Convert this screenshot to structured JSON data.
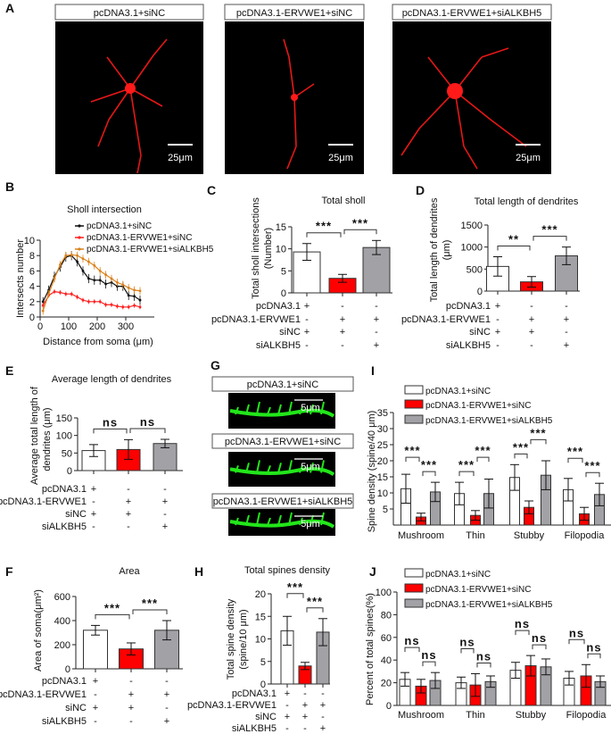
{
  "panel_A": {
    "letter": "A",
    "labels": [
      "pcDNA3.1+siNC",
      "pcDNA3.1-ERVWE1+siNC",
      "pcDNA3.1-ERVWE1+siALKBH5"
    ],
    "scale_bar": "25μm",
    "stain_color": "#ff1a1a"
  },
  "panel_G": {
    "letter": "G",
    "labels": [
      "pcDNA3.1+siNC",
      "pcDNA3.1-ERVWE1+siNC",
      "pcDNA3.1-ERVWE1+siALKBH5"
    ],
    "scale_bar": "5μm",
    "stain_color": "#22e61a"
  },
  "colors": {
    "control": "#ffffff",
    "ervwe1": "#ff0000",
    "sialkbh5": "#a2a2a6",
    "line_control": "#111111",
    "line_ervwe1": "#ff2020",
    "line_sialkbh5": "#d9821e"
  },
  "chart_data": [
    {
      "panel": "B",
      "type": "line",
      "title": "Sholl intersection",
      "xlabel": "Distance from soma (μm)",
      "ylabel": "Intersects number",
      "xlim": [
        0,
        400
      ],
      "ylim": [
        0,
        10
      ],
      "xticks": [
        "0",
        "100",
        "200",
        "300"
      ],
      "yticks": [
        "0",
        "2",
        "4",
        "6",
        "8",
        "10"
      ],
      "legend_placement": "top",
      "x": [
        10,
        30,
        50,
        70,
        90,
        110,
        130,
        150,
        170,
        190,
        210,
        230,
        250,
        270,
        290,
        310,
        330,
        350
      ],
      "series": [
        {
          "name": "pcDNA3.1+siNC",
          "values": [
            2,
            3.5,
            5.3,
            6.5,
            7.8,
            8,
            7.2,
            6,
            5,
            4.8,
            4.8,
            4.3,
            4.5,
            4,
            4,
            2.8,
            2.7,
            2.2
          ],
          "err": 0.6
        },
        {
          "name": "pcDNA3.1-ERVWE1+siNC",
          "values": [
            1.5,
            2.8,
            3.3,
            3.2,
            3,
            3,
            2.6,
            2.2,
            2,
            2,
            2,
            1.6,
            1.6,
            1.4,
            1.3,
            1.3,
            1.5,
            1.3
          ],
          "err": 0.3
        },
        {
          "name": "pcDNA3.1-ERVWE1+siALKBH5",
          "values": [
            0.8,
            3,
            5,
            6.8,
            8,
            8.1,
            8,
            7.6,
            7.2,
            6.7,
            6,
            5.5,
            5,
            4.5,
            4.2,
            3.8,
            3.5,
            3.4
          ],
          "err": 0.5
        }
      ]
    },
    {
      "panel": "C",
      "type": "bar",
      "title": "Total sholl",
      "ylabel": "Total sholl intersections",
      "ylabel2": "(Number)",
      "ylim": [
        0,
        15
      ],
      "yticks": [
        "0",
        "5",
        "10",
        "15"
      ],
      "values": [
        9.3,
        3.3,
        10.3
      ],
      "sd": [
        1.9,
        0.9,
        1.6
      ],
      "significance": [
        {
          "pair": [
            0,
            1
          ],
          "label": "***"
        },
        {
          "pair": [
            1,
            2
          ],
          "label": "***"
        }
      ],
      "conditions": [
        {
          "label": "pcDNA3.1",
          "values": [
            "+",
            "-",
            "-"
          ]
        },
        {
          "label": "pcDNA3.1-ERVWE1",
          "values": [
            "-",
            "+",
            "+"
          ]
        },
        {
          "label": "siNC",
          "values": [
            "+",
            "+",
            "-"
          ]
        },
        {
          "label": "siALKBH5",
          "values": [
            "-",
            "-",
            "+"
          ]
        }
      ]
    },
    {
      "panel": "D",
      "type": "bar",
      "title": "Total length of dendrites",
      "ylabel": "Total length of dendrites",
      "ylabel2": "(μm)",
      "ylim": [
        0,
        1500
      ],
      "yticks": [
        "0",
        "500",
        "1000",
        "1500"
      ],
      "values": [
        560,
        210,
        800
      ],
      "sd": [
        220,
        120,
        200
      ],
      "significance": [
        {
          "pair": [
            0,
            1
          ],
          "label": "**"
        },
        {
          "pair": [
            1,
            2
          ],
          "label": "***"
        }
      ],
      "conditions": [
        {
          "label": "pcDNA3.1",
          "values": [
            "+",
            "-",
            "-"
          ]
        },
        {
          "label": "pcDNA3.1-ERVWE1",
          "values": [
            "-",
            "+",
            "+"
          ]
        },
        {
          "label": "siNC",
          "values": [
            "+",
            "+",
            "-"
          ]
        },
        {
          "label": "siALKBH5",
          "values": [
            "-",
            "-",
            "+"
          ]
        }
      ]
    },
    {
      "panel": "E",
      "type": "bar",
      "title": "Average length of dendrites",
      "ylabel": "Average total length of",
      "ylabel2": "dendrites (μm)",
      "ylim": [
        0,
        150
      ],
      "yticks": [
        "0",
        "50",
        "100",
        "150"
      ],
      "values": [
        57,
        60,
        77
      ],
      "sd": [
        17,
        28,
        12
      ],
      "significance": [
        {
          "pair": [
            0,
            1
          ],
          "label": "ns"
        },
        {
          "pair": [
            1,
            2
          ],
          "label": "ns"
        }
      ],
      "conditions": [
        {
          "label": "pcDNA3.1",
          "values": [
            "+",
            "-",
            "-"
          ]
        },
        {
          "label": "pcDNA3.1-ERVWE1",
          "values": [
            "-",
            "+",
            "+"
          ]
        },
        {
          "label": "siNC",
          "values": [
            "+",
            "+",
            "-"
          ]
        },
        {
          "label": "siALKBH5",
          "values": [
            "-",
            "-",
            "+"
          ]
        }
      ]
    },
    {
      "panel": "F",
      "type": "bar",
      "title": "Area",
      "ylabel": "Area of soma(μm²)",
      "ylabel2": "",
      "ylim": [
        0,
        600
      ],
      "yticks": [
        "0",
        "200",
        "400",
        "600"
      ],
      "values": [
        320,
        165,
        320
      ],
      "sd": [
        40,
        50,
        80
      ],
      "significance": [
        {
          "pair": [
            0,
            1
          ],
          "label": "***"
        },
        {
          "pair": [
            1,
            2
          ],
          "label": "***"
        }
      ],
      "conditions": [
        {
          "label": "pcDNA3.1",
          "values": [
            "+",
            "-",
            "-"
          ]
        },
        {
          "label": "pcDNA3.1-ERVWE1",
          "values": [
            "-",
            "+",
            "+"
          ]
        },
        {
          "label": "siNC",
          "values": [
            "+",
            "+",
            "-"
          ]
        },
        {
          "label": "siALKBH5",
          "values": [
            "-",
            "-",
            "+"
          ]
        }
      ]
    },
    {
      "panel": "H",
      "type": "bar",
      "title": "Total spines density",
      "ylabel": "Total spine density",
      "ylabel2": "(spine/10 μm)",
      "ylim": [
        0,
        20
      ],
      "yticks": [
        "0",
        "5",
        "10",
        "15",
        "20"
      ],
      "values": [
        11.8,
        4,
        11.5
      ],
      "sd": [
        3.2,
        0.8,
        3
      ],
      "significance": [
        {
          "pair": [
            0,
            1
          ],
          "label": "***"
        },
        {
          "pair": [
            1,
            2
          ],
          "label": "***"
        }
      ],
      "conditions": [
        {
          "label": "pcDNA3.1",
          "values": [
            "+",
            "-",
            "-"
          ]
        },
        {
          "label": "pcDNA3.1-ERVWE1",
          "values": [
            "-",
            "+",
            "+"
          ]
        },
        {
          "label": "siNC",
          "values": [
            "+",
            "+",
            "-"
          ]
        },
        {
          "label": "siALKBH5",
          "values": [
            "-",
            "-",
            "+"
          ]
        }
      ]
    },
    {
      "panel": "I",
      "type": "bar",
      "ylabel": "Spine density (spine/40 μm)",
      "ylim": [
        0,
        35
      ],
      "yticks": [
        "5",
        "10",
        "15",
        "20",
        "25",
        "30",
        "35"
      ],
      "categories": [
        "Mushroom",
        "Thin",
        "Stubby",
        "Filopodia"
      ],
      "legend_placement": "top-left",
      "series": [
        {
          "name": "pcDNA3.1+siNC",
          "values": [
            11.3,
            9.8,
            14.8,
            11
          ],
          "sd": [
            4.5,
            3.5,
            4,
            3.5
          ]
        },
        {
          "name": "pcDNA3.1-ERVWE1+siNC",
          "values": [
            2.5,
            3,
            5.5,
            3.5
          ],
          "sd": [
            1.2,
            1.5,
            2,
            2
          ]
        },
        {
          "name": "pcDNA3.1-ERVWE1+siALKBH5",
          "values": [
            10.3,
            9.8,
            15.5,
            9.5
          ],
          "sd": [
            3,
            4.5,
            4.5,
            3.5
          ]
        }
      ],
      "significance": [
        [
          {
            "pair": [
              0,
              1
            ],
            "label": "***"
          },
          {
            "pair": [
              1,
              2
            ],
            "label": "***"
          }
        ],
        [
          {
            "pair": [
              0,
              1
            ],
            "label": "***"
          },
          {
            "pair": [
              1,
              2
            ],
            "label": "***"
          }
        ],
        [
          {
            "pair": [
              0,
              1
            ],
            "label": "***"
          },
          {
            "pair": [
              1,
              2
            ],
            "label": "***"
          }
        ],
        [
          {
            "pair": [
              0,
              1
            ],
            "label": "***"
          },
          {
            "pair": [
              1,
              2
            ],
            "label": "***"
          }
        ]
      ]
    },
    {
      "panel": "J",
      "type": "bar",
      "ylabel": "Percent of total spines(%)",
      "ylim": [
        0,
        100
      ],
      "yticks": [
        "0",
        "20",
        "40",
        "60",
        "80",
        "100"
      ],
      "categories": [
        "Mushroom",
        "Thin",
        "Stubby",
        "Filopodia"
      ],
      "legend_placement": "top-left",
      "series": [
        {
          "name": "pcDNA3.1+siNC",
          "values": [
            23,
            20,
            31,
            24
          ],
          "sd": [
            6,
            5,
            7,
            6
          ]
        },
        {
          "name": "pcDNA3.1-ERVWE1+siNC",
          "values": [
            17,
            18,
            35,
            26
          ],
          "sd": [
            6,
            10,
            9,
            10
          ]
        },
        {
          "name": "pcDNA3.1-ERVWE1+siALKBH5",
          "values": [
            22,
            21,
            34,
            21
          ],
          "sd": [
            7,
            5,
            7,
            5
          ]
        }
      ],
      "significance": [
        [
          {
            "pair": [
              0,
              1
            ],
            "label": "ns"
          },
          {
            "pair": [
              1,
              2
            ],
            "label": "ns"
          }
        ],
        [
          {
            "pair": [
              0,
              1
            ],
            "label": "ns"
          },
          {
            "pair": [
              1,
              2
            ],
            "label": "ns"
          }
        ],
        [
          {
            "pair": [
              0,
              1
            ],
            "label": "ns"
          },
          {
            "pair": [
              1,
              2
            ],
            "label": "ns"
          }
        ],
        [
          {
            "pair": [
              0,
              1
            ],
            "label": "ns"
          },
          {
            "pair": [
              1,
              2
            ],
            "label": "ns"
          }
        ]
      ]
    }
  ]
}
